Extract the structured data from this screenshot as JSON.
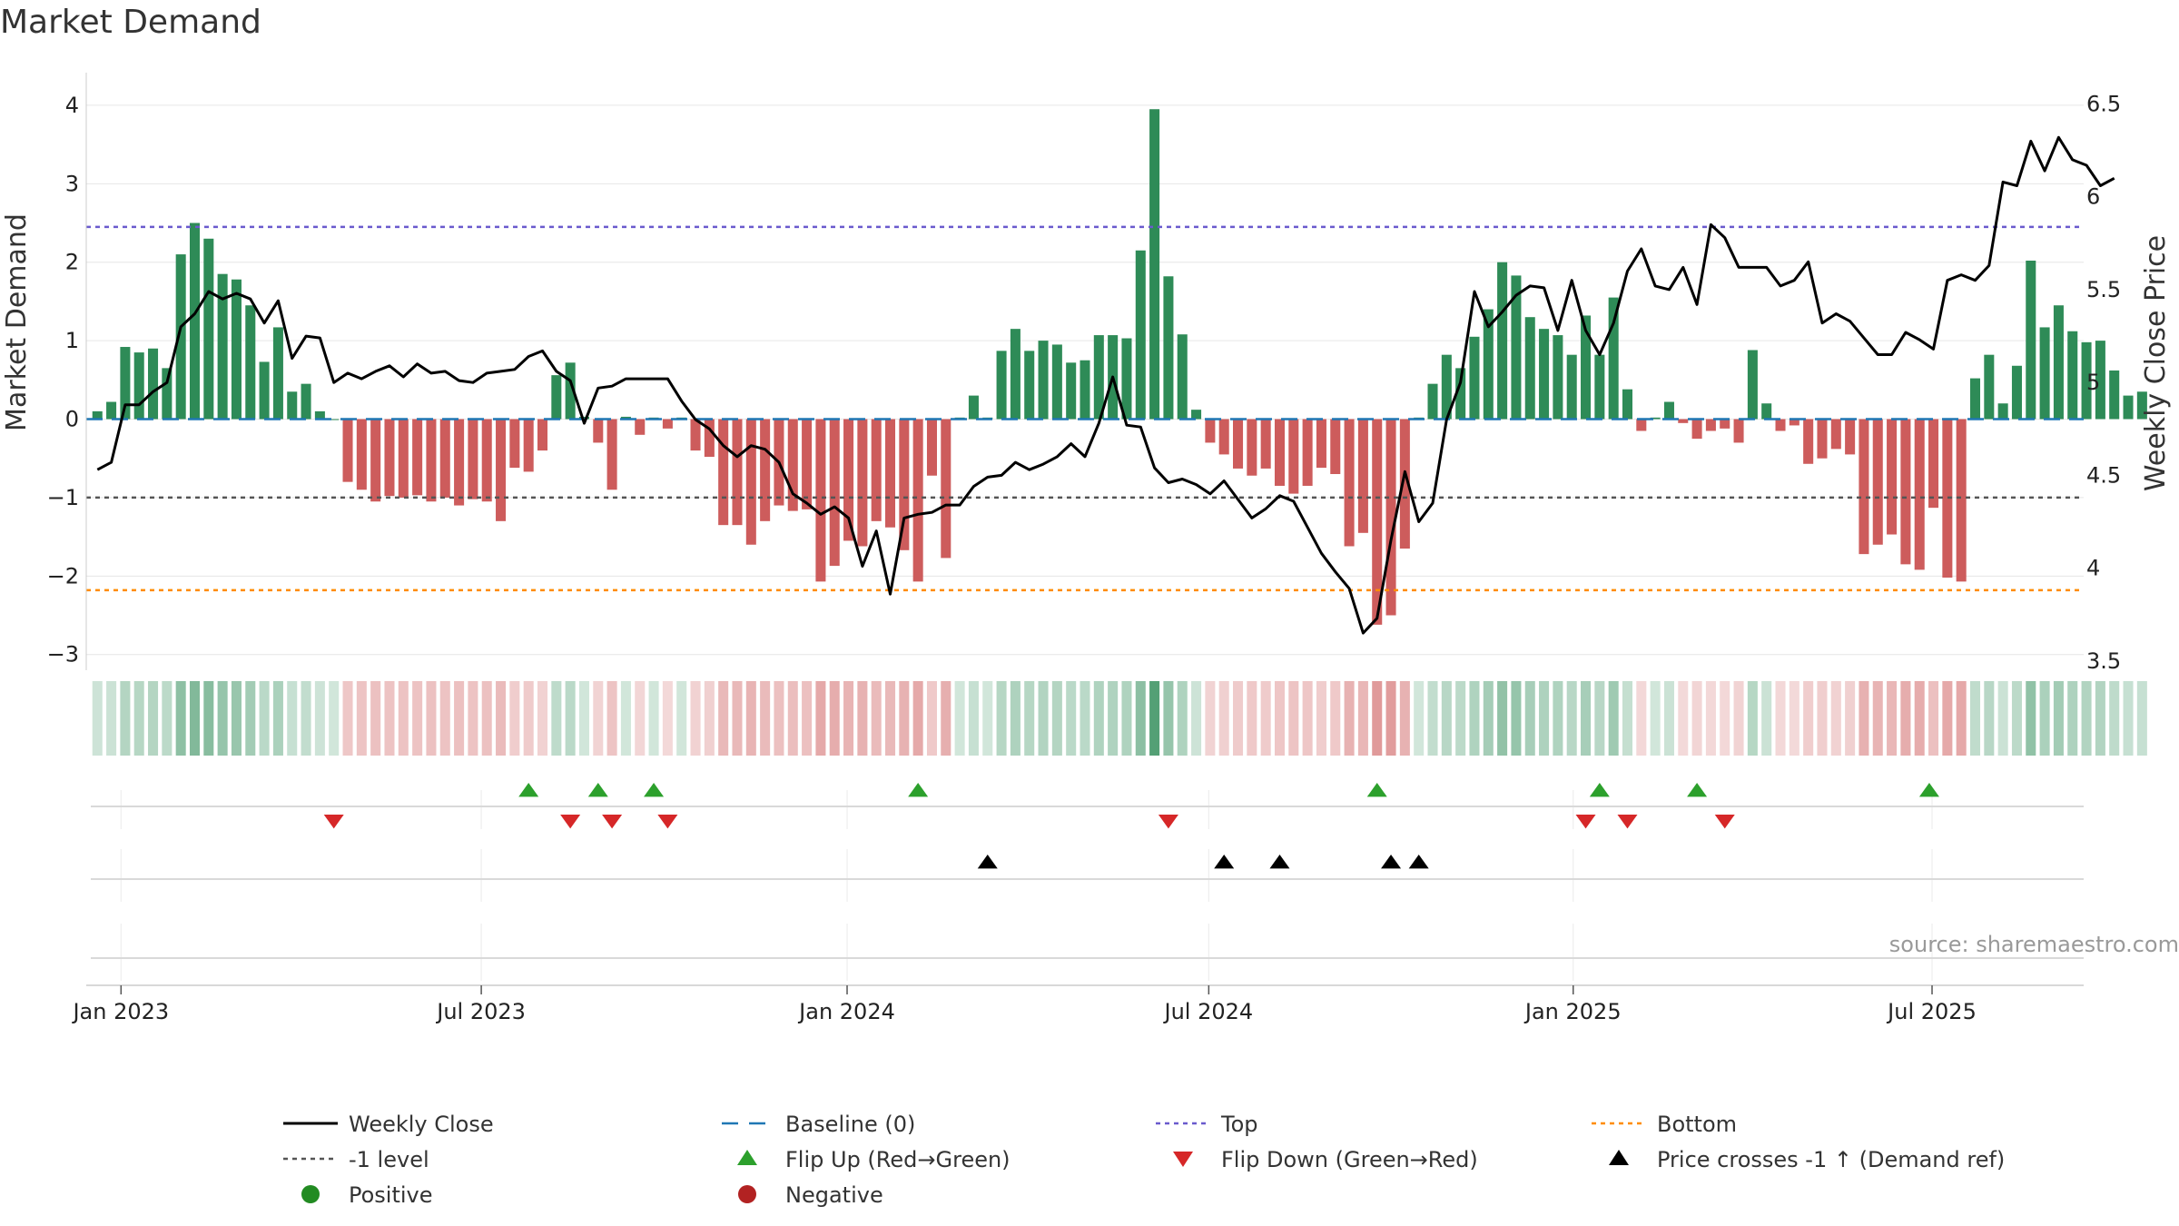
{
  "title": "Market Demand",
  "source": "source: sharemaestro.com",
  "colors": {
    "positive_bar": "#2e8b57",
    "negative_bar": "#cd5c5c",
    "price_line": "#000000",
    "baseline": "#1f77b4",
    "top": "#6a5acd",
    "bottom": "#ff8c00",
    "level": "#555555",
    "flip_up": "#2ca02c",
    "flip_down": "#d62728",
    "cross": "#000000",
    "grid": "#e6e6e6"
  },
  "chart_data": {
    "type": "bar",
    "title": "Market Demand",
    "ylabel": "Market Demand",
    "y2label": "Weekly Close Price",
    "ylim": [
      -3.2,
      4.3
    ],
    "y2lim": [
      3.45,
      6.62
    ],
    "yticks": [
      "−3",
      "−2",
      "−1",
      "0",
      "1",
      "2",
      "3",
      "4"
    ],
    "y2ticks": [
      "3.5",
      "4",
      "4.5",
      "5",
      "5.5",
      "6",
      "6.5"
    ],
    "xlim": [
      -0.8,
      142.8
    ],
    "xticks": [
      {
        "label": "Jan 2023",
        "week": 1.7
      },
      {
        "label": "Jul 2023",
        "week": 27.6
      },
      {
        "label": "Jan 2024",
        "week": 53.9
      },
      {
        "label": "Jul 2024",
        "week": 79.9
      },
      {
        "label": "Jan 2025",
        "week": 106.1
      },
      {
        "label": "Jul 2025",
        "week": 131.9
      }
    ],
    "reference_lines": {
      "top": 2.45,
      "minus_one": -1,
      "bottom": -2.18,
      "baseline": 0
    },
    "demand": [
      0.1,
      0.22,
      0.92,
      0.85,
      0.9,
      0.65,
      2.1,
      2.5,
      2.3,
      1.85,
      1.78,
      1.45,
      0.73,
      1.17,
      0.35,
      0.45,
      0.1,
      0,
      -0.8,
      -0.9,
      -1.05,
      -0.98,
      -1.0,
      -0.97,
      -1.05,
      -1.0,
      -1.1,
      -1.02,
      -1.05,
      -1.3,
      -0.62,
      -0.67,
      -0.4,
      0.56,
      0.72,
      0.03,
      -0.3,
      -0.9,
      0.03,
      -0.2,
      0.02,
      -0.12,
      0.02,
      -0.4,
      -0.48,
      -1.35,
      -1.35,
      -1.6,
      -1.3,
      -1.1,
      -1.17,
      -1.15,
      -2.07,
      -1.87,
      -1.55,
      -1.62,
      -1.3,
      -1.38,
      -1.67,
      -2.07,
      -0.72,
      -1.77,
      0.02,
      0.3,
      0.02,
      0.87,
      1.15,
      0.87,
      1.0,
      0.95,
      0.72,
      0.75,
      1.07,
      1.07,
      1.03,
      2.15,
      3.95,
      1.82,
      1.08,
      0.12,
      -0.3,
      -0.45,
      -0.63,
      -0.72,
      -0.63,
      -0.85,
      -0.95,
      -0.85,
      -0.62,
      -0.7,
      -1.62,
      -1.45,
      -2.62,
      -2.5,
      -1.65,
      0.02,
      0.45,
      0.82,
      0.65,
      1.05,
      1.4,
      2.0,
      1.83,
      1.3,
      1.15,
      1.07,
      0.82,
      1.32,
      0.82,
      1.55,
      0.38,
      -0.15,
      0.02,
      0.22,
      -0.05,
      -0.25,
      -0.15,
      -0.12,
      -0.3,
      0.88,
      0.2,
      -0.15,
      -0.08,
      -0.57,
      -0.5,
      -0.38,
      -0.45,
      -1.72,
      -1.6,
      -1.47,
      -1.85,
      -1.92,
      -1.13,
      -2.02,
      -2.07,
      0.52,
      0.82,
      0.2,
      0.68,
      2.02,
      1.17,
      1.45,
      1.12,
      0.98,
      1.0,
      0.62,
      0.3,
      0.35
    ],
    "weekly_close": [
      4.53,
      4.57,
      4.88,
      4.88,
      4.95,
      5.0,
      5.3,
      5.37,
      5.49,
      5.45,
      5.48,
      5.45,
      5.32,
      5.44,
      5.13,
      5.25,
      5.24,
      5.0,
      5.05,
      5.02,
      5.06,
      5.09,
      5.03,
      5.1,
      5.05,
      5.06,
      5.01,
      5.0,
      5.05,
      5.06,
      5.07,
      5.14,
      5.17,
      5.06,
      5.01,
      4.78,
      4.97,
      4.98,
      5.02,
      5.02,
      5.02,
      5.02,
      4.9,
      4.8,
      4.75,
      4.66,
      4.6,
      4.66,
      4.64,
      4.57,
      4.4,
      4.35,
      4.29,
      4.33,
      4.27,
      4.01,
      4.2,
      3.86,
      4.27,
      4.29,
      4.3,
      4.34,
      4.34,
      4.44,
      4.49,
      4.5,
      4.57,
      4.53,
      4.56,
      4.6,
      4.67,
      4.6,
      4.78,
      5.03,
      4.77,
      4.76,
      4.54,
      4.46,
      4.48,
      4.45,
      4.4,
      4.47,
      4.37,
      4.27,
      4.32,
      4.39,
      4.36,
      4.22,
      4.08,
      3.98,
      3.89,
      3.65,
      3.73,
      4.15,
      4.52,
      4.25,
      4.35,
      4.8,
      5.0,
      5.49,
      5.3,
      5.38,
      5.47,
      5.52,
      5.51,
      5.28,
      5.55,
      5.28,
      5.15,
      5.32,
      5.6,
      5.72,
      5.52,
      5.5,
      5.62,
      5.42,
      5.85,
      5.78,
      5.62,
      5.62,
      5.62,
      5.52,
      5.55,
      5.65,
      5.32,
      5.37,
      5.33,
      5.24,
      5.15,
      5.15,
      5.27,
      5.23,
      5.18,
      5.55,
      5.58,
      5.55,
      5.63,
      6.08,
      6.06,
      6.3,
      6.14,
      6.32,
      6.2,
      6.17,
      6.06,
      6.1
    ],
    "strip_values": [
      0.1,
      0.22,
      0.92,
      0.85,
      0.9,
      0.65,
      2.1,
      2.5,
      2.3,
      1.85,
      1.78,
      1.45,
      0.73,
      1.17,
      0.35,
      0.45,
      0.1,
      0,
      -0.8,
      -0.9,
      -1.05,
      -0.98,
      -1.0,
      -0.97,
      -1.05,
      -1.0,
      -1.1,
      -1.02,
      -1.05,
      -1.3,
      -0.62,
      -0.67,
      -0.4,
      0.56,
      0.72,
      0.03,
      -0.3,
      -0.9,
      0.03,
      -0.2,
      0.02,
      -0.12,
      0.02,
      -0.4,
      -0.48,
      -1.35,
      -1.35,
      -1.6,
      -1.3,
      -1.1,
      -1.17,
      -1.15,
      -2.07,
      -1.87,
      -1.55,
      -1.62,
      -1.3,
      -1.38,
      -1.67,
      -2.07,
      -0.72,
      -1.77,
      0.02,
      0.3,
      0.02,
      0.87,
      1.15,
      0.87,
      1.0,
      0.95,
      0.72,
      0.75,
      1.07,
      1.07,
      1.03,
      2.15,
      3.95,
      1.82,
      1.08,
      0.12,
      -0.3,
      -0.45,
      -0.63,
      -0.72,
      -0.63,
      -0.85,
      -0.95,
      -0.85,
      -0.62,
      -0.7,
      -1.62,
      -1.45,
      -2.62,
      -2.5,
      -1.65,
      0.02,
      0.45,
      0.82,
      0.65,
      1.05,
      1.4,
      2.0,
      1.83,
      1.3,
      1.15,
      1.07,
      0.82,
      1.32,
      0.82,
      1.55,
      0.38,
      -0.15,
      0.02,
      0.22,
      -0.05,
      -0.25,
      -0.15,
      -0.12,
      -0.3,
      0.88,
      0.2,
      -0.15,
      -0.08,
      -0.57,
      -0.5,
      -0.38,
      -0.45,
      -1.72,
      -1.6,
      -1.47,
      -1.85,
      -1.92,
      -1.13,
      -2.02,
      -2.07,
      0.52,
      0.82,
      0.2,
      0.68,
      2.02,
      1.17,
      1.45,
      1.12,
      0.98,
      1.0,
      0.62,
      0.3,
      0.35
    ],
    "flip_up_weeks": [
      31,
      36,
      40,
      59,
      92,
      108,
      115,
      131.7
    ],
    "flip_down_weeks": [
      17,
      34,
      37,
      41,
      77,
      107,
      110,
      117
    ],
    "price_cross_weeks": [
      64,
      81,
      85,
      93,
      95
    ]
  },
  "legend": [
    {
      "label": "Weekly Close",
      "key": "weekly-close"
    },
    {
      "label": "Baseline (0)",
      "key": "baseline"
    },
    {
      "label": "Top",
      "key": "top"
    },
    {
      "label": "Bottom",
      "key": "bottom"
    },
    {
      "label": "-1 level",
      "key": "minus-one-level"
    },
    {
      "label": "Flip Up (Red→Green)",
      "key": "flip-up"
    },
    {
      "label": "Flip Down (Green→Red)",
      "key": "flip-down"
    },
    {
      "label": "Price crosses -1 ↑ (Demand ref)",
      "key": "price-cross"
    },
    {
      "label": "Positive",
      "key": "positive"
    },
    {
      "label": "Negative",
      "key": "negative"
    }
  ]
}
